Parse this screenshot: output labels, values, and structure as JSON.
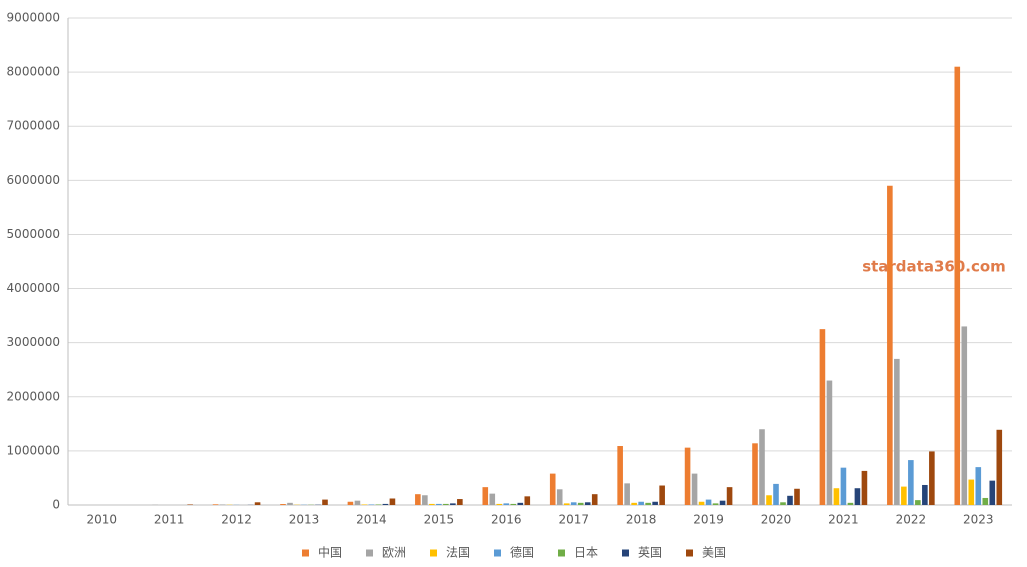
{
  "chart_data": {
    "type": "bar",
    "categories": [
      "2010",
      "2011",
      "2012",
      "2013",
      "2014",
      "2015",
      "2016",
      "2017",
      "2018",
      "2019",
      "2020",
      "2021",
      "2022",
      "2023"
    ],
    "series": [
      {
        "name": "中国",
        "color": "#ed7d31",
        "values": [
          0,
          0,
          13000,
          18000,
          60000,
          200000,
          330000,
          580000,
          1090000,
          1060000,
          1140000,
          3250000,
          5900000,
          8100000
        ]
      },
      {
        "name": "欧洲",
        "color": "#a5a5a5",
        "values": [
          0,
          5000,
          10000,
          40000,
          80000,
          180000,
          210000,
          290000,
          400000,
          580000,
          1400000,
          2300000,
          2700000,
          3300000
        ]
      },
      {
        "name": "法国",
        "color": "#ffc000",
        "values": [
          0,
          0,
          5000,
          5000,
          10000,
          20000,
          20000,
          30000,
          40000,
          60000,
          180000,
          310000,
          340000,
          470000
        ]
      },
      {
        "name": "德国",
        "color": "#5b9bd5",
        "values": [
          0,
          0,
          3000,
          5000,
          10000,
          20000,
          30000,
          50000,
          60000,
          100000,
          390000,
          690000,
          830000,
          700000
        ]
      },
      {
        "name": "日本",
        "color": "#70ad47",
        "values": [
          0,
          0,
          0,
          5000,
          10000,
          20000,
          20000,
          40000,
          40000,
          30000,
          50000,
          40000,
          90000,
          130000
        ]
      },
      {
        "name": "英国",
        "color": "#264478",
        "values": [
          0,
          0,
          3000,
          5000,
          20000,
          30000,
          40000,
          50000,
          60000,
          80000,
          170000,
          310000,
          370000,
          450000
        ]
      },
      {
        "name": "美国",
        "color": "#9e480e",
        "values": [
          0,
          10000,
          50000,
          100000,
          120000,
          110000,
          160000,
          200000,
          360000,
          330000,
          300000,
          630000,
          990000,
          1390000
        ]
      }
    ],
    "ylim": [
      0,
      9000000
    ],
    "yticks": [
      0,
      1000000,
      2000000,
      3000000,
      4000000,
      5000000,
      6000000,
      7000000,
      8000000,
      9000000
    ],
    "grid": true,
    "legend": "bottom",
    "annotation": "stardata360.com"
  }
}
